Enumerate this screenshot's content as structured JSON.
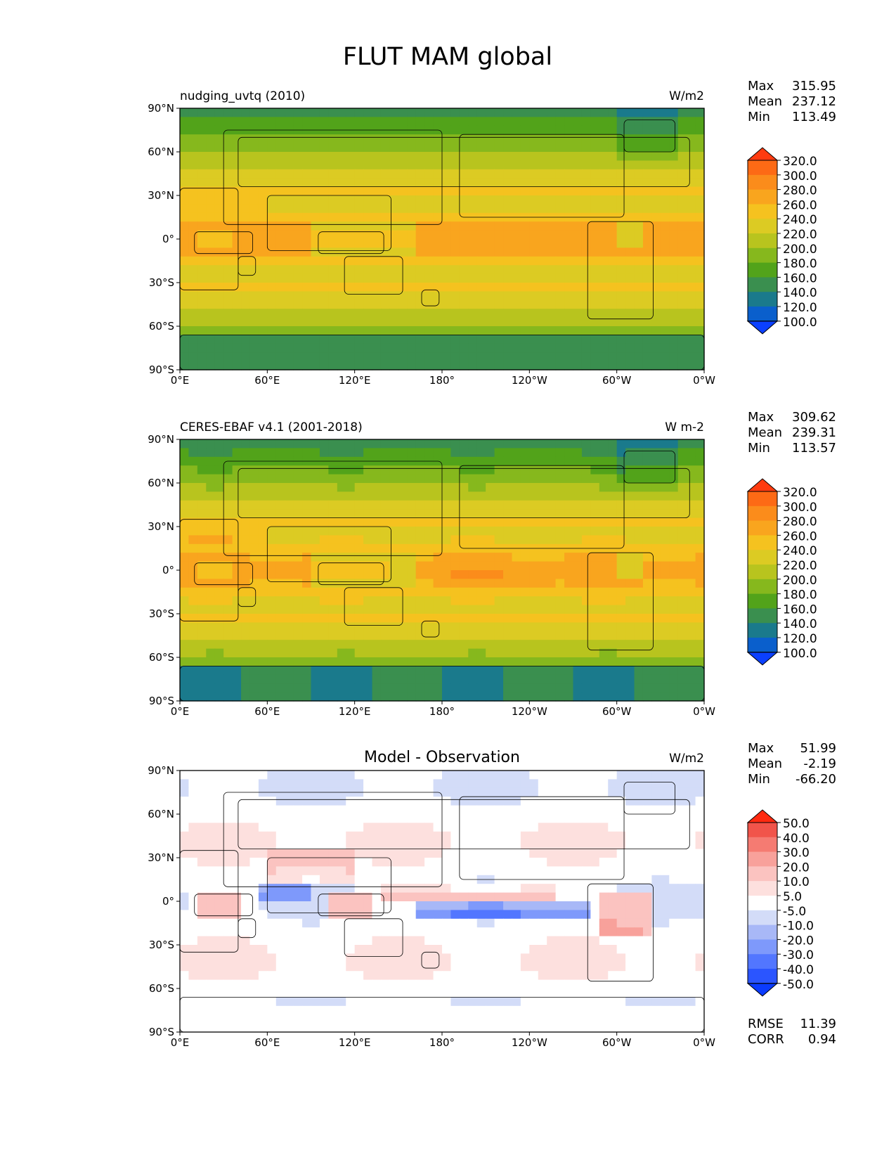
{
  "figure_title": "FLUT MAM global",
  "x_ticks": [
    "0°E",
    "60°E",
    "120°E",
    "180°",
    "120°W",
    "60°W",
    "0°W"
  ],
  "y_ticks": [
    "90°N",
    "60°N",
    "30°N",
    "0°",
    "30°S",
    "60°S",
    "90°S"
  ],
  "stat_labels": {
    "max": "Max",
    "mean": "Mean",
    "min": "Min",
    "rmse": "RMSE",
    "corr": "CORR"
  },
  "colors": {
    "abs": [
      "#0b40ff",
      "#0a5fcc",
      "#1a7a8c",
      "#3a8f4f",
      "#52a31a",
      "#86b81d",
      "#b8c41e",
      "#dccb23",
      "#f5c21f",
      "#f9a51e",
      "#fb8c1b",
      "#fd6a15",
      "#ff3b10"
    ],
    "diff": [
      "#0b3bff",
      "#2b55ff",
      "#5276ff",
      "#7e99fb",
      "#a8b8f7",
      "#d3dcf8",
      "#ffffff",
      "#fde0de",
      "#fbc3c0",
      "#f8a19b",
      "#f57b72",
      "#f1544a",
      "#ff2a10"
    ]
  },
  "chart_data": [
    {
      "type": "heatmap",
      "title_left": "nudging_uvtq (2010)",
      "units": "W/m2",
      "xlim": [
        0,
        360
      ],
      "ylim": [
        -90,
        90
      ],
      "stats": {
        "max": "315.95",
        "mean": "237.12",
        "min": "113.49"
      },
      "colorbar": {
        "ticks": [
          "320.0",
          "300.0",
          "280.0",
          "260.0",
          "240.0",
          "220.0",
          "200.0",
          "180.0",
          "160.0",
          "140.0",
          "120.0",
          "100.0"
        ],
        "levels": [
          100,
          120,
          140,
          160,
          180,
          200,
          220,
          240,
          260,
          280,
          300,
          320
        ],
        "extend": "both"
      }
    },
    {
      "type": "heatmap",
      "title_left": "CERES-EBAF v4.1 (2001-2018)",
      "units": "W m-2",
      "xlim": [
        0,
        360
      ],
      "ylim": [
        -90,
        90
      ],
      "stats": {
        "max": "309.62",
        "mean": "239.31",
        "min": "113.57"
      },
      "colorbar": {
        "ticks": [
          "320.0",
          "300.0",
          "280.0",
          "260.0",
          "240.0",
          "220.0",
          "200.0",
          "180.0",
          "160.0",
          "140.0",
          "120.0",
          "100.0"
        ],
        "levels": [
          100,
          120,
          140,
          160,
          180,
          200,
          220,
          240,
          260,
          280,
          300,
          320
        ],
        "extend": "both"
      }
    },
    {
      "type": "heatmap",
      "title_center": "Model - Observation",
      "units": "W/m2",
      "xlim": [
        0,
        360
      ],
      "ylim": [
        -90,
        90
      ],
      "stats": {
        "max": "51.99",
        "mean": "-2.19",
        "min": "-66.20",
        "rmse": "11.39",
        "corr": "0.94"
      },
      "colorbar": {
        "ticks": [
          "50.0",
          "40.0",
          "30.0",
          "20.0",
          "10.0",
          "5.0",
          "-5.0",
          "-10.0",
          "-20.0",
          "-30.0",
          "-40.0",
          "-50.0"
        ],
        "levels": [
          -50,
          -40,
          -30,
          -20,
          -10,
          -5,
          5,
          10,
          20,
          30,
          40,
          50
        ],
        "extend": "both"
      }
    }
  ]
}
